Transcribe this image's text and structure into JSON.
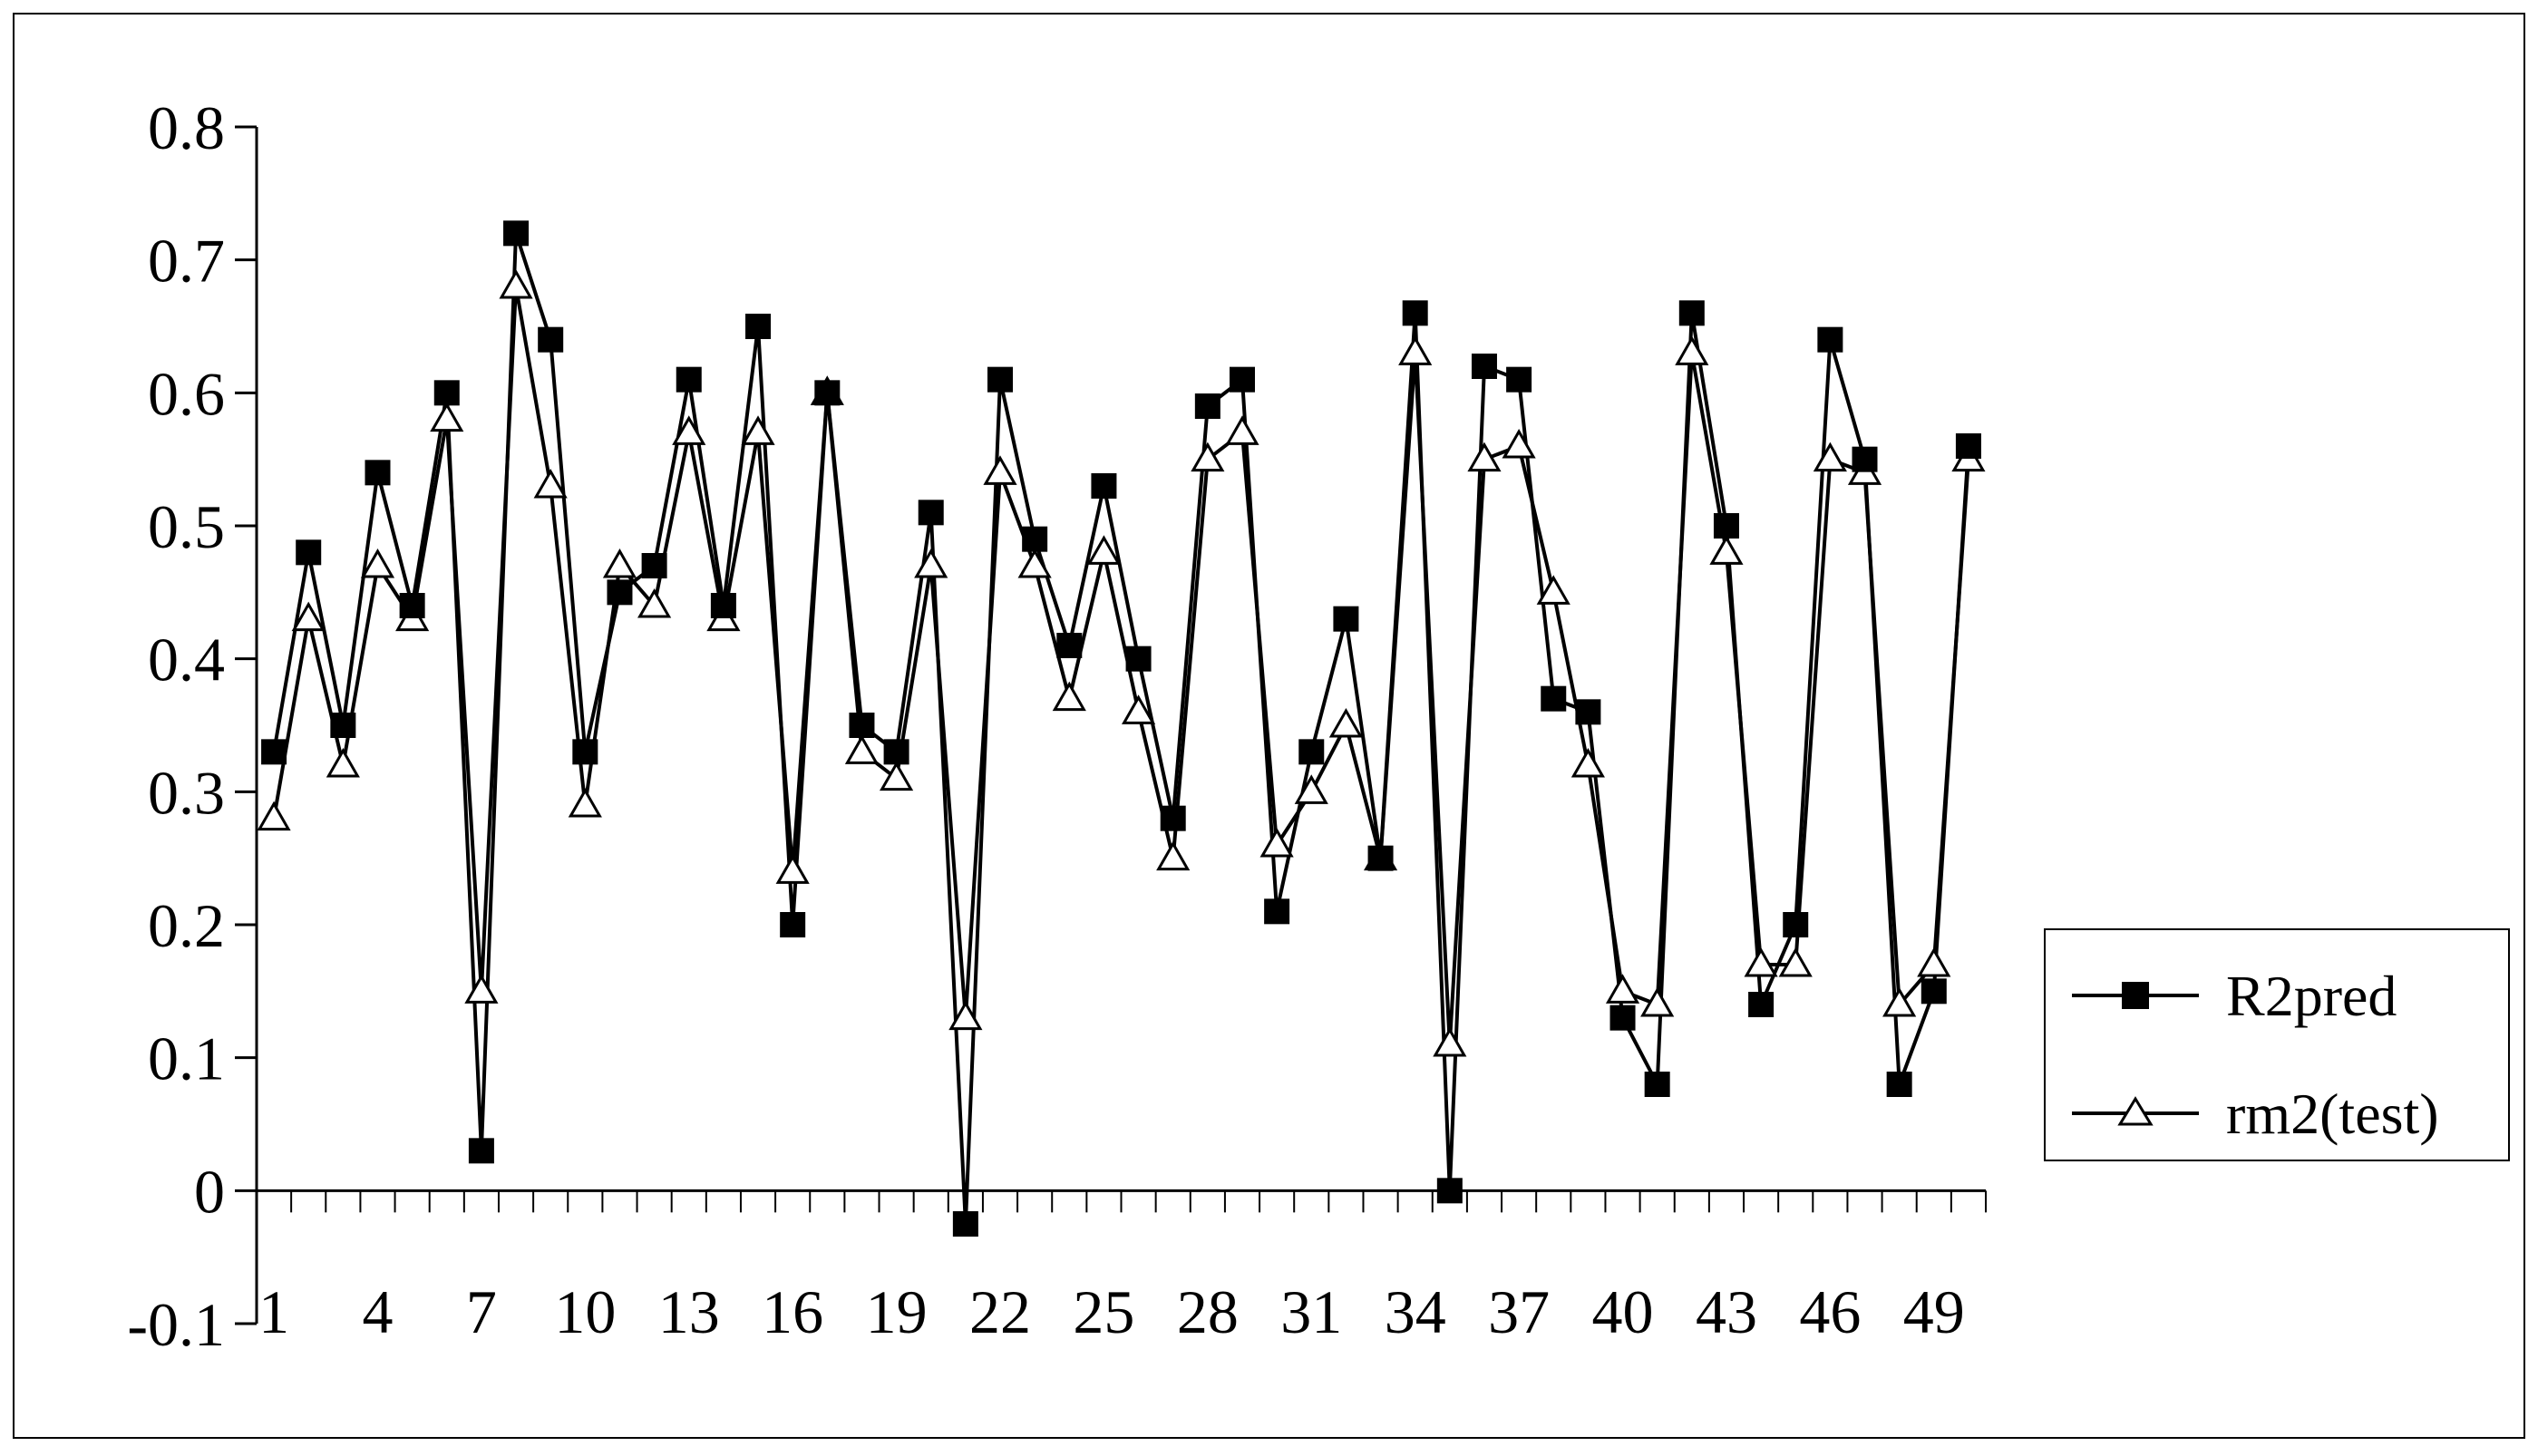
{
  "chart_data": {
    "type": "line",
    "title": "",
    "xlabel": "",
    "ylabel": "",
    "x": [
      1,
      2,
      3,
      4,
      5,
      6,
      7,
      8,
      9,
      10,
      11,
      12,
      13,
      14,
      15,
      16,
      17,
      18,
      19,
      20,
      21,
      22,
      23,
      24,
      25,
      26,
      27,
      28,
      29,
      30,
      31,
      32,
      33,
      34,
      35,
      36,
      37,
      38,
      39,
      40,
      41,
      42,
      43,
      44,
      45,
      46,
      47,
      48,
      49,
      50
    ],
    "x_tick_labels": [
      "1",
      "4",
      "7",
      "10",
      "13",
      "16",
      "19",
      "22",
      "25",
      "28",
      "31",
      "34",
      "37",
      "40",
      "43",
      "46",
      "49"
    ],
    "y_tick_labels": [
      "-0.1",
      "0",
      "0.1",
      "0.2",
      "0.3",
      "0.4",
      "0.5",
      "0.6",
      "0.7",
      "0.8"
    ],
    "ylim": [
      -0.1,
      0.8
    ],
    "grid": false,
    "legend_position": "right",
    "series": [
      {
        "name": "R2pred",
        "marker": "filled-square",
        "color": "#000000",
        "values": [
          0.33,
          0.48,
          0.35,
          0.54,
          0.44,
          0.6,
          0.03,
          0.72,
          0.64,
          0.33,
          0.45,
          0.47,
          0.61,
          0.44,
          0.65,
          0.2,
          0.6,
          0.35,
          0.33,
          0.51,
          -0.025,
          0.61,
          0.49,
          0.41,
          0.53,
          0.4,
          0.28,
          0.59,
          0.61,
          0.21,
          0.33,
          0.43,
          0.25,
          0.66,
          0.0,
          0.62,
          0.61,
          0.37,
          0.36,
          0.13,
          0.08,
          0.66,
          0.5,
          0.14,
          0.2,
          0.64,
          0.55,
          0.08,
          0.15,
          0.56
        ]
      },
      {
        "name": "rm2(test)",
        "marker": "open-triangle",
        "color": "#000000",
        "values": [
          0.28,
          0.43,
          0.32,
          0.47,
          0.43,
          0.58,
          0.15,
          0.68,
          0.53,
          0.29,
          0.47,
          0.44,
          0.57,
          0.43,
          0.57,
          0.24,
          0.6,
          0.33,
          0.31,
          0.47,
          0.13,
          0.54,
          0.47,
          0.37,
          0.48,
          0.36,
          0.25,
          0.55,
          0.57,
          0.26,
          0.3,
          0.35,
          0.25,
          0.63,
          0.11,
          0.55,
          0.56,
          0.45,
          0.32,
          0.15,
          0.14,
          0.63,
          0.48,
          0.17,
          0.17,
          0.55,
          0.54,
          0.14,
          0.17,
          0.55
        ]
      }
    ]
  }
}
